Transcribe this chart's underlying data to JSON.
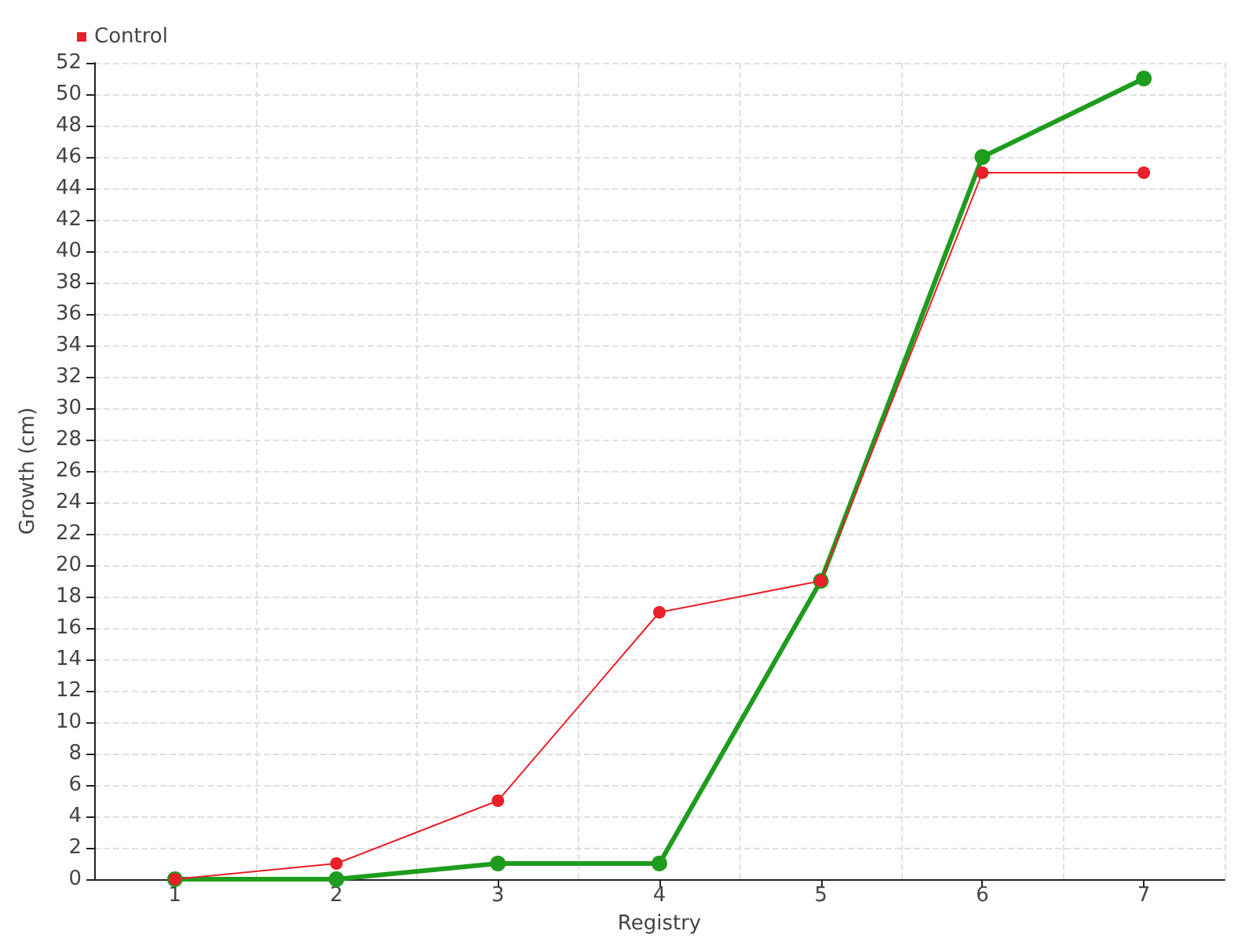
{
  "chart_data": {
    "type": "line",
    "xlabel": "Registry",
    "ylabel": "Growth (cm)",
    "categories": [
      "1",
      "2",
      "3",
      "4",
      "5",
      "6",
      "7"
    ],
    "series": [
      {
        "color": "#1e9c1e",
        "values": [
          0,
          0,
          1,
          1,
          19,
          46,
          51
        ]
      },
      {
        "name": "Control",
        "color": "#e8202a",
        "values": [
          0,
          1,
          5,
          17,
          19,
          45,
          45
        ]
      }
    ],
    "ylim": [
      0,
      52
    ],
    "yticks": [
      0,
      2,
      4,
      6,
      8,
      10,
      12,
      14,
      16,
      18,
      20,
      22,
      24,
      26,
      28,
      30,
      32,
      34,
      36,
      38,
      40,
      42,
      44,
      46,
      48,
      50,
      52
    ],
    "grid": true,
    "legend": "top left",
    "marker": "circle",
    "line_style": "solid"
  }
}
